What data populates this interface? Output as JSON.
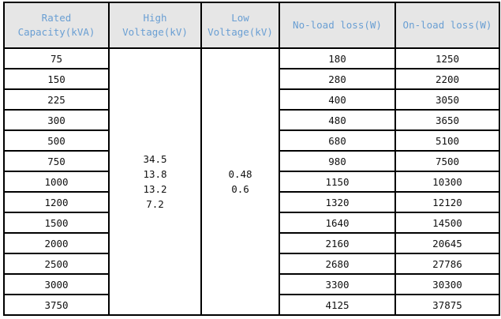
{
  "headers": [
    "Rated Capacity(kVA)",
    "High Voltage(kV)",
    "Low Voltage(kV)",
    "No-load loss(W)",
    "On-load loss(W)"
  ],
  "header_lines": {
    "capacity": [
      "Rated",
      "Capacity(kVA)"
    ],
    "high": [
      "High",
      "Voltage(kV)"
    ],
    "low": [
      "Low",
      "Voltage(kV)"
    ]
  },
  "high_voltage": [
    "34.5",
    "13.8",
    "13.2",
    "7.2"
  ],
  "low_voltage": [
    "0.48",
    "0.6"
  ],
  "rows": [
    {
      "capacity": "75",
      "no_load": "180",
      "on_load": "1250"
    },
    {
      "capacity": "150",
      "no_load": "280",
      "on_load": "2200"
    },
    {
      "capacity": "225",
      "no_load": "400",
      "on_load": "3050"
    },
    {
      "capacity": "300",
      "no_load": "480",
      "on_load": "3650"
    },
    {
      "capacity": "500",
      "no_load": "680",
      "on_load": "5100"
    },
    {
      "capacity": "750",
      "no_load": "980",
      "on_load": "7500"
    },
    {
      "capacity": "1000",
      "no_load": "1150",
      "on_load": "10300"
    },
    {
      "capacity": "1200",
      "no_load": "1320",
      "on_load": "12120"
    },
    {
      "capacity": "1500",
      "no_load": "1640",
      "on_load": "14500"
    },
    {
      "capacity": "2000",
      "no_load": "2160",
      "on_load": "20645"
    },
    {
      "capacity": "2500",
      "no_load": "2680",
      "on_load": "27786"
    },
    {
      "capacity": "3000",
      "no_load": "3300",
      "on_load": "30300"
    },
    {
      "capacity": "3750",
      "no_load": "4125",
      "on_load": "37875"
    }
  ],
  "colors": {
    "header_bg": "#e6e6e6",
    "header_text": "#6a9fd3",
    "border": "#000000"
  }
}
